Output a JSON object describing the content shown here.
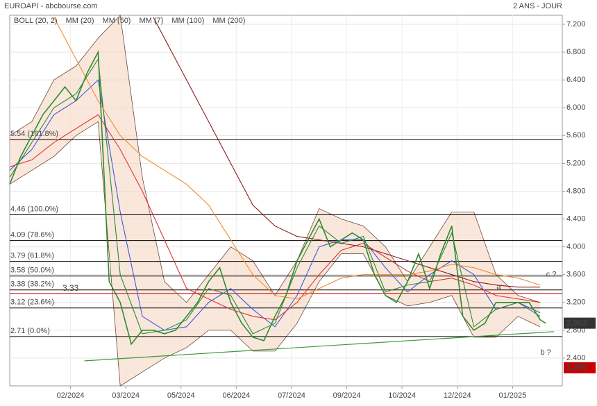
{
  "chart_data": {
    "type": "line",
    "title": "EUROAPI - abcbourse.com",
    "subtitle": "2 ANS - JOUR",
    "xlim": [
      0,
      200
    ],
    "ylim": [
      2.0,
      7.33
    ],
    "xticks": [
      {
        "value": 22,
        "label": "02/2024"
      },
      {
        "value": 42,
        "label": "03/2024"
      },
      {
        "value": 62,
        "label": "05/2024"
      },
      {
        "value": 82,
        "label": "06/2024"
      },
      {
        "value": 102,
        "label": "07/2024"
      },
      {
        "value": 122,
        "label": "09/2024"
      },
      {
        "value": 142,
        "label": "10/2024"
      },
      {
        "value": 162,
        "label": "12/2024"
      },
      {
        "value": 182,
        "label": "01/2025"
      }
    ],
    "yticks": [
      {
        "value": 2.4,
        "label": "2.400"
      },
      {
        "value": 2.8,
        "label": "2.800"
      },
      {
        "value": 3.2,
        "label": "3.200"
      },
      {
        "value": 3.6,
        "label": "3.600"
      },
      {
        "value": 4.0,
        "label": "4.000"
      },
      {
        "value": 4.4,
        "label": "4.400"
      },
      {
        "value": 4.8,
        "label": "4.800"
      },
      {
        "value": 5.2,
        "label": "5.200"
      },
      {
        "value": 5.6,
        "label": "5.600"
      },
      {
        "value": 6.0,
        "label": "6.000"
      },
      {
        "value": 6.4,
        "label": "6.400"
      },
      {
        "value": 6.8,
        "label": "6.800"
      },
      {
        "value": 7.2,
        "label": "7.200"
      }
    ],
    "grid": true,
    "x": [
      0,
      4,
      8,
      12,
      16,
      20,
      24,
      28,
      32,
      36,
      40,
      44,
      48,
      52,
      56,
      60,
      64,
      68,
      72,
      76,
      80,
      84,
      88,
      92,
      96,
      100,
      104,
      108,
      112,
      116,
      120,
      124,
      128,
      132,
      136,
      140,
      144,
      148,
      152,
      156,
      160,
      164,
      168,
      172,
      176,
      180,
      184,
      188,
      192,
      194
    ],
    "values": [
      4.9,
      5.3,
      5.6,
      5.9,
      6.1,
      6.3,
      6.1,
      6.5,
      6.8,
      3.5,
      3.2,
      2.6,
      2.8,
      2.8,
      2.75,
      2.8,
      3.0,
      3.2,
      3.5,
      3.7,
      3.2,
      2.9,
      2.7,
      2.65,
      3.0,
      3.3,
      3.8,
      4.1,
      4.4,
      4.0,
      4.1,
      4.2,
      4.1,
      3.6,
      3.3,
      3.2,
      3.5,
      3.9,
      3.4,
      3.9,
      4.3,
      3.0,
      2.8,
      2.9,
      3.2,
      3.2,
      3.2,
      3.2,
      2.95,
      2.902
    ],
    "color": "#2e8b2e",
    "bands": {
      "name": "BOLL (20, 2)",
      "color": "#f5d3bd",
      "x": [
        0,
        8,
        16,
        24,
        32,
        40,
        48,
        56,
        64,
        72,
        80,
        88,
        96,
        104,
        112,
        120,
        128,
        136,
        144,
        152,
        160,
        168,
        176,
        184,
        192
      ],
      "upper": [
        5.6,
        5.8,
        6.4,
        6.6,
        7.0,
        7.33,
        5.0,
        3.5,
        3.2,
        3.6,
        4.0,
        3.8,
        3.3,
        3.8,
        4.55,
        4.4,
        4.3,
        4.0,
        3.5,
        4.0,
        4.5,
        4.5,
        3.6,
        3.3,
        3.2
      ],
      "lower": [
        4.9,
        5.1,
        5.3,
        5.6,
        5.8,
        2.0,
        2.2,
        2.4,
        2.55,
        2.8,
        2.8,
        2.5,
        2.5,
        2.9,
        3.5,
        3.9,
        3.9,
        3.3,
        3.15,
        3.2,
        3.3,
        2.7,
        2.7,
        3.0,
        2.85
      ]
    },
    "series": [
      {
        "name": "MM (20)",
        "color": "#3b5bdb",
        "x": [
          0,
          8,
          16,
          24,
          32,
          40,
          48,
          56,
          64,
          72,
          80,
          88,
          96,
          104,
          112,
          120,
          128,
          136,
          144,
          152,
          160,
          168,
          176,
          184,
          192
        ],
        "values": [
          5.1,
          5.4,
          5.9,
          6.1,
          6.4,
          4.5,
          3.0,
          2.8,
          2.85,
          3.2,
          3.4,
          3.1,
          2.85,
          3.3,
          4.0,
          4.1,
          4.1,
          3.7,
          3.35,
          3.6,
          3.8,
          3.6,
          3.1,
          3.2,
          3.05
        ]
      },
      {
        "name": "MM (50)",
        "color": "#e03131",
        "x": [
          0,
          8,
          16,
          24,
          32,
          40,
          48,
          56,
          64,
          72,
          80,
          88,
          96,
          104,
          112,
          120,
          128,
          136,
          144,
          152,
          160,
          168,
          176,
          184,
          192
        ],
        "values": [
          5.15,
          5.25,
          5.5,
          5.7,
          5.9,
          5.4,
          4.8,
          4.1,
          3.4,
          3.25,
          3.1,
          3.0,
          2.95,
          3.2,
          3.6,
          3.95,
          4.05,
          3.85,
          3.65,
          3.5,
          3.55,
          3.45,
          3.3,
          3.25,
          3.2
        ]
      },
      {
        "name": "MM (7)",
        "color": "#2b8a3e",
        "x": [
          0,
          8,
          16,
          24,
          32,
          40,
          48,
          56,
          64,
          72,
          80,
          88,
          96,
          104,
          112,
          120,
          128,
          136,
          144,
          152,
          160,
          168,
          176,
          184,
          192
        ],
        "values": [
          5.0,
          5.5,
          6.0,
          6.2,
          6.7,
          3.6,
          2.75,
          2.8,
          2.95,
          3.4,
          3.3,
          2.75,
          2.9,
          3.7,
          4.3,
          4.05,
          4.15,
          3.35,
          3.45,
          3.5,
          4.2,
          2.85,
          3.1,
          3.2,
          3.0
        ]
      },
      {
        "name": "MM (100)",
        "color": "#f08c2e",
        "x": [
          16,
          24,
          32,
          40,
          48,
          56,
          64,
          72,
          80,
          88,
          96,
          104,
          112,
          120,
          128,
          136,
          144,
          152,
          160,
          168,
          176,
          184,
          192
        ],
        "values": [
          7.3,
          6.7,
          6.1,
          5.6,
          5.3,
          5.1,
          4.9,
          4.6,
          4.1,
          3.6,
          3.3,
          3.25,
          3.4,
          3.55,
          3.6,
          3.6,
          3.6,
          3.65,
          3.75,
          3.7,
          3.6,
          3.55,
          3.45
        ]
      },
      {
        "name": "MM (200)",
        "color": "#8b1a1a",
        "x": [
          52,
          56,
          64,
          72,
          80,
          88,
          96,
          104,
          112,
          120,
          128,
          136,
          144,
          152,
          160,
          168,
          176,
          184,
          192
        ],
        "values": [
          7.3,
          7.0,
          6.4,
          5.8,
          5.2,
          4.6,
          4.3,
          4.15,
          4.1,
          4.05,
          4.0,
          3.9,
          3.8,
          3.7,
          3.6,
          3.5,
          3.45,
          3.42,
          3.42
        ]
      }
    ],
    "levels": [
      {
        "value": 5.54,
        "label": "5.54 (161.8%)"
      },
      {
        "value": 4.46,
        "label": "4.46 (100.0%)"
      },
      {
        "value": 4.09,
        "label": "4.09 (78.6%)"
      },
      {
        "value": 3.79,
        "label": "3.79 (61.8%)"
      },
      {
        "value": 3.58,
        "label": "3.58 (50.0%)"
      },
      {
        "value": 3.38,
        "label": "3.38 (38.2%)"
      },
      {
        "value": 3.12,
        "label": "3.12 (23.6%)"
      },
      {
        "value": 2.71,
        "label": "2.71 (0.0%)"
      }
    ],
    "red_level": {
      "value": 3.33,
      "label": "3.33",
      "color": "#cc0000"
    },
    "trendline": {
      "x": [
        27,
        197
      ],
      "values": [
        2.36,
        2.78
      ],
      "color": "#3a9a3a"
    },
    "annotations": [
      {
        "text": "a",
        "x": 177,
        "y": 3.42
      },
      {
        "text": "c ?",
        "x": 196,
        "y": 3.6
      },
      {
        "text": "b ?",
        "x": 194,
        "y": 2.48
      }
    ],
    "last_price": {
      "value": 2.902,
      "label": "2.902",
      "color": "#333333"
    },
    "low_price": {
      "value": 2.26,
      "label": "2.260",
      "color": "#cc0000"
    }
  }
}
